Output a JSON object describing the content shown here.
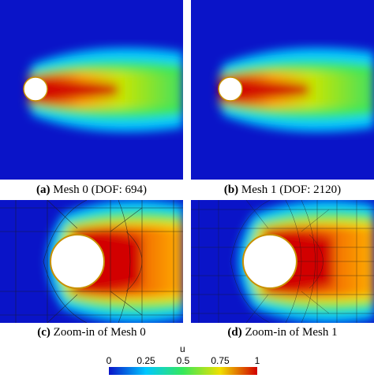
{
  "panels": [
    {
      "id": "a",
      "letter": "(a)",
      "caption": "Mesh 0 (DOF: 694)"
    },
    {
      "id": "b",
      "letter": "(b)",
      "caption": "Mesh 1 (DOF: 2120)"
    },
    {
      "id": "c",
      "letter": "(c)",
      "caption": "Zoom-in of Mesh 0"
    },
    {
      "id": "d",
      "letter": "(d)",
      "caption": "Zoom-in of Mesh 1"
    }
  ],
  "colorbar": {
    "title": "u",
    "ticks": [
      "0",
      "0.25",
      "0.5",
      "0.75",
      "1"
    ],
    "colors": [
      "#0a14c8",
      "#00c8ff",
      "#36e85a",
      "#f0e000",
      "#d20000"
    ]
  }
}
